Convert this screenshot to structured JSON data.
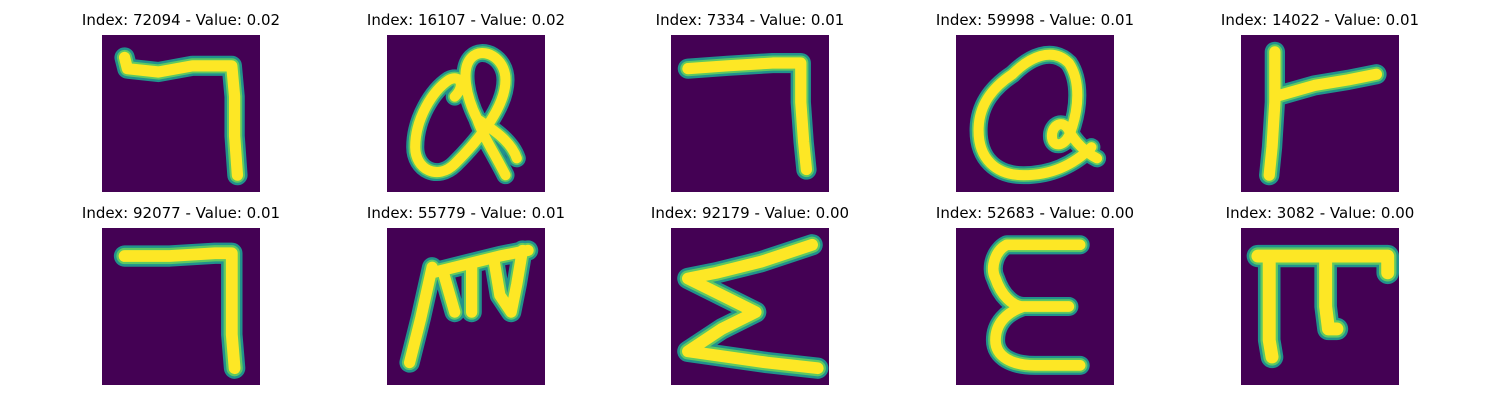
{
  "panels": [
    {
      "title": "Index: 72094 - Value: 0.02",
      "glyph": "bent-seven"
    },
    {
      "title": "Index: 16107 - Value: 0.02",
      "glyph": "looped-alpha"
    },
    {
      "title": "Index: 7334 - Value: 0.01",
      "glyph": "bent-seven"
    },
    {
      "title": "Index: 59998 - Value: 0.01",
      "glyph": "rounded-a"
    },
    {
      "title": "Index: 14022 - Value: 0.01",
      "glyph": "sideways-t"
    },
    {
      "title": "Index: 92077 - Value: 0.01",
      "glyph": "bent-seven"
    },
    {
      "title": "Index: 55779 - Value: 0.01",
      "glyph": "scripted-m"
    },
    {
      "title": "Index: 92179 - Value: 0.00",
      "glyph": "sigma-zigzag"
    },
    {
      "title": "Index: 52683 - Value: 0.00",
      "glyph": "epsilon"
    },
    {
      "title": "Index: 3082 - Value: 0.00",
      "glyph": "pi-shape"
    }
  ],
  "colors": {
    "background": "#440154",
    "edge": "#21918c",
    "mid": "#5ec962",
    "core": "#fde725"
  }
}
